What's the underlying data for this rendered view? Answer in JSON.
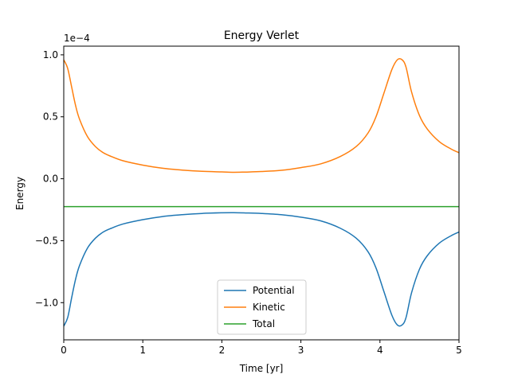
{
  "chart_data": {
    "type": "line",
    "title": "Energy Verlet",
    "xlabel": "Time [yr]",
    "ylabel": "Energy",
    "y_offset_text": "1e−4",
    "xlim": [
      0,
      5
    ],
    "ylim": [
      -1.3,
      1.07
    ],
    "xticks": [
      0,
      1,
      2,
      3,
      4,
      5
    ],
    "xtick_labels": [
      "0",
      "1",
      "2",
      "3",
      "4",
      "5"
    ],
    "yticks": [
      -1.0,
      -0.5,
      0.0,
      0.5,
      1.0
    ],
    "ytick_labels": [
      "−1.0",
      "−0.5",
      "0.0",
      "0.5",
      "1.0"
    ],
    "grid": false,
    "legend_position": "lower center",
    "x": [
      0.0,
      0.05,
      0.1,
      0.15,
      0.2,
      0.3,
      0.4,
      0.5,
      0.6,
      0.75,
      1.0,
      1.25,
      1.5,
      1.75,
      2.0,
      2.15,
      2.3,
      2.5,
      2.75,
      3.0,
      3.25,
      3.5,
      3.7,
      3.85,
      3.95,
      4.05,
      4.15,
      4.22,
      4.28,
      4.33,
      4.4,
      4.5,
      4.6,
      4.75,
      4.9,
      5.0
    ],
    "series": [
      {
        "name": "Potential",
        "color": "#1f77b4",
        "values": [
          -1.19,
          -1.12,
          -0.96,
          -0.81,
          -0.7,
          -0.56,
          -0.48,
          -0.43,
          -0.4,
          -0.365,
          -0.33,
          -0.305,
          -0.29,
          -0.28,
          -0.275,
          -0.274,
          -0.276,
          -0.28,
          -0.29,
          -0.31,
          -0.34,
          -0.4,
          -0.48,
          -0.59,
          -0.72,
          -0.91,
          -1.1,
          -1.18,
          -1.18,
          -1.12,
          -0.92,
          -0.73,
          -0.62,
          -0.52,
          -0.46,
          -0.43
        ]
      },
      {
        "name": "Kinetic",
        "color": "#ff7f0e",
        "values": [
          0.96,
          0.89,
          0.74,
          0.59,
          0.48,
          0.34,
          0.26,
          0.21,
          0.18,
          0.145,
          0.11,
          0.085,
          0.07,
          0.06,
          0.055,
          0.052,
          0.054,
          0.058,
          0.068,
          0.09,
          0.12,
          0.18,
          0.26,
          0.37,
          0.5,
          0.69,
          0.88,
          0.96,
          0.96,
          0.9,
          0.7,
          0.51,
          0.4,
          0.3,
          0.24,
          0.21
        ]
      },
      {
        "name": "Total",
        "color": "#2ca02c",
        "values": [
          -0.225,
          -0.225,
          -0.225,
          -0.225,
          -0.225,
          -0.225,
          -0.225,
          -0.225,
          -0.225,
          -0.225,
          -0.225,
          -0.225,
          -0.225,
          -0.225,
          -0.225,
          -0.225,
          -0.225,
          -0.225,
          -0.225,
          -0.225,
          -0.225,
          -0.225,
          -0.225,
          -0.225,
          -0.225,
          -0.225,
          -0.225,
          -0.225,
          -0.225,
          -0.225,
          -0.225,
          -0.225,
          -0.225,
          -0.225,
          -0.225,
          -0.225
        ]
      }
    ]
  }
}
